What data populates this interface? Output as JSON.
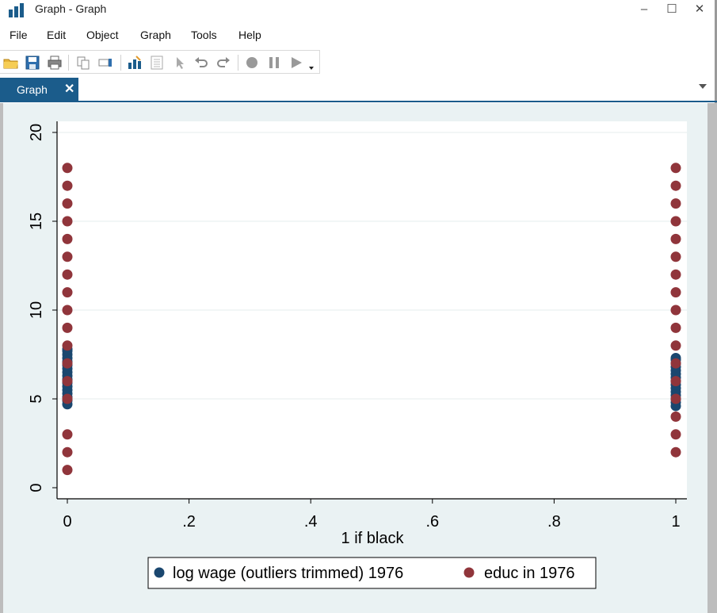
{
  "window": {
    "title": "Graph - Graph",
    "minimize_label": "–",
    "maximize_label": "☐",
    "close_label": "✕"
  },
  "menu": [
    "File",
    "Edit",
    "Object",
    "Graph",
    "Tools",
    "Help"
  ],
  "toolbar": {
    "icons": [
      "open-icon",
      "save-icon",
      "print-icon",
      "copy-icon",
      "rename-icon",
      "graph-editor-icon",
      "data-editor-icon",
      "pointer-icon",
      "undo-icon",
      "redo-icon",
      "record-icon",
      "pause-icon",
      "play-icon",
      "dropdown-icon"
    ]
  },
  "tabs": [
    {
      "label": "Graph",
      "close": "✕"
    }
  ],
  "colors": {
    "tab_blue": "#1b5c8b",
    "series_blue": "#1a476f",
    "series_red": "#90353b",
    "plot_bg": "#ffffff",
    "graph_bg": "#eaf2f3"
  },
  "chart_data": {
    "type": "scatter",
    "xlabel": "1 if black",
    "ylabel": "",
    "xlim": [
      0,
      1
    ],
    "ylim": [
      0,
      20
    ],
    "x_ticks": [
      {
        "value": 0,
        "label": "0"
      },
      {
        "value": 0.2,
        "label": ".2"
      },
      {
        "value": 0.4,
        "label": ".4"
      },
      {
        "value": 0.6,
        "label": ".6"
      },
      {
        "value": 0.8,
        "label": ".8"
      },
      {
        "value": 1,
        "label": "1"
      }
    ],
    "y_ticks": [
      {
        "value": 0,
        "label": "0"
      },
      {
        "value": 5,
        "label": "5"
      },
      {
        "value": 10,
        "label": "10"
      },
      {
        "value": 15,
        "label": "15"
      },
      {
        "value": 20,
        "label": "20"
      }
    ],
    "grid": "horizontal",
    "legend_position": "bottom",
    "series": [
      {
        "name": "log wage (outliers trimmed) 1976",
        "color": "#1a476f",
        "points": [
          {
            "x": 0,
            "y": 4.7
          },
          {
            "x": 0,
            "y": 4.9
          },
          {
            "x": 0,
            "y": 5.1
          },
          {
            "x": 0,
            "y": 5.3
          },
          {
            "x": 0,
            "y": 5.5
          },
          {
            "x": 0,
            "y": 5.7
          },
          {
            "x": 0,
            "y": 5.9
          },
          {
            "x": 0,
            "y": 6.1
          },
          {
            "x": 0,
            "y": 6.3
          },
          {
            "x": 0,
            "y": 6.5
          },
          {
            "x": 0,
            "y": 6.7
          },
          {
            "x": 0,
            "y": 6.9
          },
          {
            "x": 0,
            "y": 7.1
          },
          {
            "x": 0,
            "y": 7.3
          },
          {
            "x": 0,
            "y": 7.5
          },
          {
            "x": 0,
            "y": 7.7
          },
          {
            "x": 0,
            "y": 7.8
          },
          {
            "x": 1,
            "y": 4.6
          },
          {
            "x": 1,
            "y": 4.8
          },
          {
            "x": 1,
            "y": 5.0
          },
          {
            "x": 1,
            "y": 5.2
          },
          {
            "x": 1,
            "y": 5.4
          },
          {
            "x": 1,
            "y": 5.6
          },
          {
            "x": 1,
            "y": 5.8
          },
          {
            "x": 1,
            "y": 6.0
          },
          {
            "x": 1,
            "y": 6.2
          },
          {
            "x": 1,
            "y": 6.4
          },
          {
            "x": 1,
            "y": 6.6
          },
          {
            "x": 1,
            "y": 6.8
          },
          {
            "x": 1,
            "y": 7.0
          },
          {
            "x": 1,
            "y": 7.2
          },
          {
            "x": 1,
            "y": 7.3
          }
        ]
      },
      {
        "name": "educ in 1976",
        "color": "#90353b",
        "points": [
          {
            "x": 0,
            "y": 1
          },
          {
            "x": 0,
            "y": 2
          },
          {
            "x": 0,
            "y": 3
          },
          {
            "x": 0,
            "y": 5
          },
          {
            "x": 0,
            "y": 6
          },
          {
            "x": 0,
            "y": 7
          },
          {
            "x": 0,
            "y": 8
          },
          {
            "x": 0,
            "y": 9
          },
          {
            "x": 0,
            "y": 10
          },
          {
            "x": 0,
            "y": 11
          },
          {
            "x": 0,
            "y": 12
          },
          {
            "x": 0,
            "y": 13
          },
          {
            "x": 0,
            "y": 14
          },
          {
            "x": 0,
            "y": 15
          },
          {
            "x": 0,
            "y": 16
          },
          {
            "x": 0,
            "y": 17
          },
          {
            "x": 0,
            "y": 18
          },
          {
            "x": 1,
            "y": 2
          },
          {
            "x": 1,
            "y": 3
          },
          {
            "x": 1,
            "y": 4
          },
          {
            "x": 1,
            "y": 5
          },
          {
            "x": 1,
            "y": 6
          },
          {
            "x": 1,
            "y": 7
          },
          {
            "x": 1,
            "y": 8
          },
          {
            "x": 1,
            "y": 9
          },
          {
            "x": 1,
            "y": 10
          },
          {
            "x": 1,
            "y": 11
          },
          {
            "x": 1,
            "y": 12
          },
          {
            "x": 1,
            "y": 13
          },
          {
            "x": 1,
            "y": 14
          },
          {
            "x": 1,
            "y": 15
          },
          {
            "x": 1,
            "y": 16
          },
          {
            "x": 1,
            "y": 17
          },
          {
            "x": 1,
            "y": 18
          }
        ]
      }
    ]
  }
}
